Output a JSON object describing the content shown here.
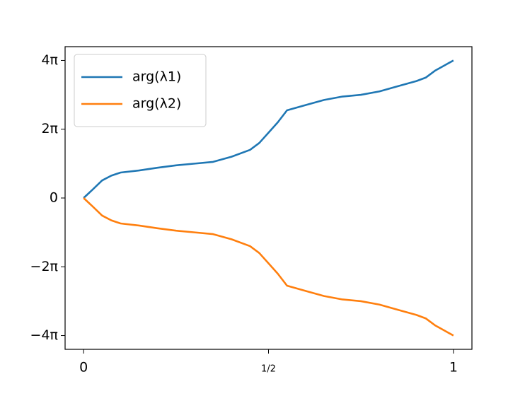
{
  "chart_data": {
    "type": "line",
    "x": [
      0,
      0.025,
      0.05,
      0.075,
      0.1,
      0.15,
      0.2,
      0.25,
      0.3,
      0.35,
      0.4,
      0.45,
      0.475,
      0.5,
      0.525,
      0.55,
      0.6,
      0.65,
      0.7,
      0.75,
      0.8,
      0.85,
      0.9,
      0.925,
      0.95,
      0.975,
      1
    ],
    "series": [
      {
        "name": "arg(λ1)",
        "color": "#1f77b4",
        "values": [
          0,
          0.25,
          0.51,
          0.65,
          0.74,
          0.8,
          0.88,
          0.95,
          1.0,
          1.05,
          1.2,
          1.4,
          1.6,
          1.9,
          2.2,
          2.55,
          2.7,
          2.85,
          2.95,
          3.0,
          3.1,
          3.25,
          3.4,
          3.5,
          3.7,
          3.85,
          4.0
        ]
      },
      {
        "name": "arg(λ2)",
        "color": "#ff7f0e",
        "values": [
          0,
          -0.25,
          -0.51,
          -0.65,
          -0.74,
          -0.8,
          -0.88,
          -0.95,
          -1.0,
          -1.05,
          -1.2,
          -1.4,
          -1.6,
          -1.9,
          -2.2,
          -2.55,
          -2.7,
          -2.85,
          -2.95,
          -3.0,
          -3.1,
          -3.25,
          -3.4,
          -3.5,
          -3.7,
          -3.85,
          -4.0
        ]
      }
    ],
    "xlim": [
      -0.05,
      1.05
    ],
    "ylim": [
      -4.4,
      4.4
    ],
    "xticks": [
      0,
      {
        "value": 0.5,
        "label": "1/2"
      },
      1
    ],
    "yticks": [
      {
        "value": -4,
        "label": "−4π"
      },
      {
        "value": -2,
        "label": "−2π"
      },
      0,
      {
        "value": 2,
        "label": "2π"
      },
      {
        "value": 4,
        "label": "4π"
      }
    ],
    "legend": "upper left"
  }
}
